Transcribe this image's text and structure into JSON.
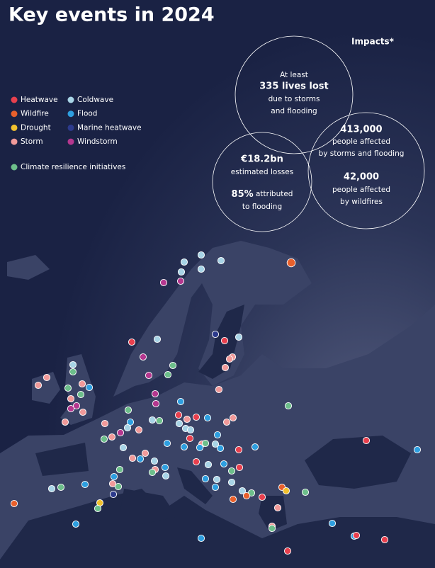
{
  "header": {
    "title": "Key events in 2024"
  },
  "legend": {
    "items": [
      "Heatwave",
      "Coldwave",
      "Wildfire",
      "Flood",
      "Drought",
      "Marine heatwave",
      "Storm",
      "Windstorm"
    ],
    "initiatives": "Climate resilience initiatives"
  },
  "impacts": {
    "heading": "Impacts*",
    "lives": {
      "lead": "At least",
      "figure": "335 lives lost",
      "text": [
        "due to storms",
        "and flooding"
      ]
    },
    "losses": {
      "figure": "€18.2bn",
      "text": "estimated losses",
      "share": "85%",
      "share_text": [
        "attributed",
        "to flooding"
      ]
    },
    "affected": [
      {
        "figure": "413,000",
        "text": [
          "people affected",
          "by storms and flooding"
        ]
      },
      {
        "figure": "42,000",
        "text": [
          "people affected",
          "by wildfires"
        ]
      }
    ]
  }
}
